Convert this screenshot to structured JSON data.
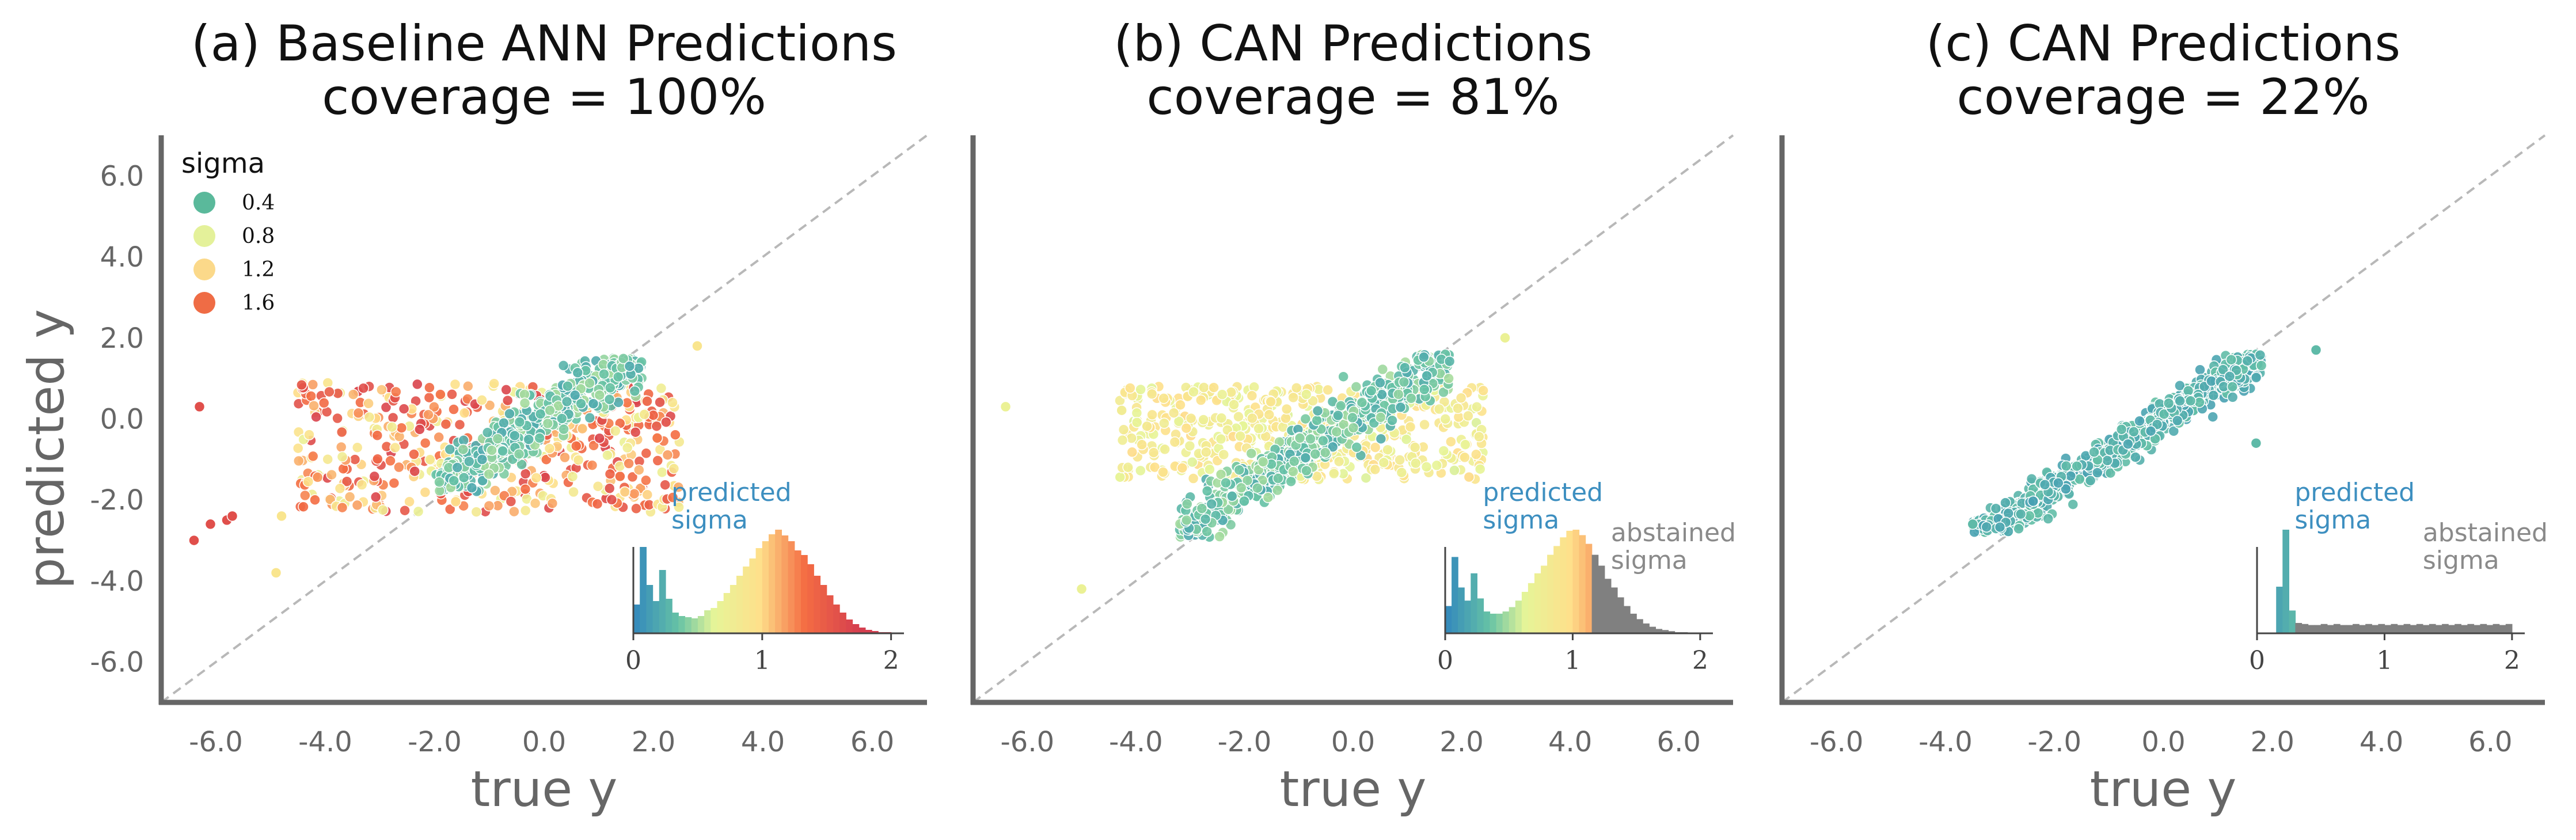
{
  "figure": {
    "ylabel": "predicted y",
    "xlabel": "true y"
  },
  "chart_data": [
    {
      "type": "scatter",
      "title_line1": "(a) Baseline ANN Predictions",
      "title_line2": "coverage = 100%",
      "xlabel": "true y",
      "ylabel": "predicted y",
      "xlim": [
        -7,
        7
      ],
      "ylim": [
        -7,
        7
      ],
      "xticks": [
        -6,
        -4,
        -2,
        0,
        2,
        4,
        6
      ],
      "yticks": [
        -6,
        -4,
        -2,
        0,
        2,
        4,
        6
      ],
      "xtick_labels": [
        "-6.0",
        "-4.0",
        "-2.0",
        "0.0",
        "2.0",
        "4.0",
        "6.0"
      ],
      "ytick_labels": [
        "-6.0",
        "-4.0",
        "-2.0",
        "0.0",
        "2.0",
        "4.0",
        "6.0"
      ],
      "reference_line": "y = x (dashed grey)",
      "coverage_percent": 100,
      "point_groups": [
        {
          "label": "high-sigma spread",
          "x_range": [
            -4.5,
            2.5
          ],
          "y_range": [
            -2.3,
            0.9
          ],
          "sigma_range": [
            0.7,
            1.7
          ]
        },
        {
          "label": "low-sigma diagonal",
          "x_range": [
            -2.0,
            1.8
          ],
          "y_range": [
            -1.8,
            1.5
          ],
          "sigma_range": [
            0.2,
            0.5
          ]
        }
      ],
      "outliers": [
        [
          -6.3,
          0.3
        ],
        [
          -6.4,
          -3.0
        ],
        [
          -6.1,
          -2.6
        ],
        [
          -5.8,
          -2.5
        ],
        [
          -5.7,
          -2.4
        ],
        [
          -4.9,
          -3.8
        ],
        [
          2.8,
          1.8
        ],
        [
          -4.8,
          -2.4
        ]
      ],
      "legend": {
        "title": "sigma",
        "placement": "upper-left",
        "items": [
          {
            "label": "0.4",
            "color": "#5ab99b"
          },
          {
            "label": "0.8",
            "color": "#e4f19a"
          },
          {
            "label": "1.2",
            "color": "#fbd98a"
          },
          {
            "label": "1.6",
            "color": "#ef6c45"
          }
        ]
      },
      "inset": {
        "title": "predicted sigma",
        "xticks": [
          "0",
          "1",
          "2"
        ],
        "histogram": [
          0.25,
          0.75,
          0.42,
          0.28,
          0.55,
          0.3,
          0.18,
          0.15,
          0.14,
          0.13,
          0.15,
          0.2,
          0.22,
          0.28,
          0.35,
          0.42,
          0.5,
          0.58,
          0.65,
          0.74,
          0.8,
          0.86,
          0.9,
          0.85,
          0.8,
          0.72,
          0.68,
          0.6,
          0.5,
          0.42,
          0.33,
          0.25,
          0.18,
          0.12,
          0.08,
          0.05,
          0.03,
          0.02,
          0.01,
          0.01
        ],
        "bin_start": 0.0,
        "bin_width": 0.05,
        "abstained_from": null,
        "abstained_label": ""
      }
    },
    {
      "type": "scatter",
      "title_line1": "(b) CAN Predictions",
      "title_line2": "coverage = 81%",
      "xlabel": "true y",
      "xlim": [
        -7,
        7
      ],
      "ylim": [
        -7,
        7
      ],
      "xticks": [
        -6,
        -4,
        -2,
        0,
        2,
        4,
        6
      ],
      "xtick_labels": [
        "-6.0",
        "-4.0",
        "-2.0",
        "0.0",
        "2.0",
        "4.0",
        "6.0"
      ],
      "reference_line": "y = x (dashed grey)",
      "coverage_percent": 81,
      "point_groups": [
        {
          "label": "moderate-sigma spread",
          "x_range": [
            -4.3,
            2.4
          ],
          "y_range": [
            -1.5,
            0.8
          ],
          "sigma_range": [
            0.6,
            1.0
          ]
        },
        {
          "label": "low-sigma diagonal",
          "x_range": [
            -3.2,
            1.8
          ],
          "y_range": [
            -3.0,
            1.6
          ],
          "sigma_range": [
            0.2,
            0.5
          ]
        }
      ],
      "outliers": [
        [
          -6.4,
          0.3
        ],
        [
          -5.0,
          -4.2
        ],
        [
          2.8,
          2.0
        ]
      ],
      "inset": {
        "title": "predicted sigma",
        "xticks": [
          "0",
          "1",
          "2"
        ],
        "histogram": [
          0.25,
          0.7,
          0.42,
          0.3,
          0.55,
          0.32,
          0.2,
          0.18,
          0.18,
          0.2,
          0.24,
          0.3,
          0.38,
          0.46,
          0.55,
          0.62,
          0.72,
          0.8,
          0.88,
          0.94,
          0.95,
          0.9,
          0.82,
          0.72,
          0.62,
          0.5,
          0.42,
          0.33,
          0.25,
          0.18,
          0.13,
          0.09,
          0.06,
          0.04,
          0.03,
          0.02,
          0.01,
          0.01,
          0.0,
          0.0
        ],
        "bin_start": 0.0,
        "bin_width": 0.05,
        "abstained_from": 1.15,
        "abstained_label": "abstained sigma"
      }
    },
    {
      "type": "scatter",
      "title_line1": "(c) CAN Predictions",
      "title_line2": "coverage = 22%",
      "xlabel": "true y",
      "xlim": [
        -7,
        7
      ],
      "ylim": [
        -7,
        7
      ],
      "xticks": [
        -6,
        -4,
        -2,
        0,
        2,
        4,
        6
      ],
      "xtick_labels": [
        "-6.0",
        "-4.0",
        "-2.0",
        "0.0",
        "2.0",
        "4.0",
        "6.0"
      ],
      "reference_line": "y = x (dashed grey)",
      "coverage_percent": 22,
      "point_groups": [
        {
          "label": "low-sigma diagonal",
          "x_range": [
            -3.5,
            1.8
          ],
          "y_range": [
            -2.8,
            1.6
          ],
          "sigma_range": [
            0.15,
            0.35
          ]
        }
      ],
      "outliers": [
        [
          2.8,
          1.7
        ],
        [
          -3.5,
          -2.6
        ],
        [
          1.7,
          -0.6
        ]
      ],
      "inset": {
        "title": "predicted sigma",
        "xticks": [
          "0",
          "1",
          "2"
        ],
        "histogram": [
          0.0,
          0.0,
          0.0,
          0.45,
          1.0,
          0.22,
          0.1,
          0.09,
          0.08,
          0.08,
          0.09,
          0.08,
          0.09,
          0.08,
          0.08,
          0.09,
          0.08,
          0.09,
          0.08,
          0.09,
          0.08,
          0.09,
          0.08,
          0.09,
          0.08,
          0.09,
          0.08,
          0.09,
          0.08,
          0.09,
          0.08,
          0.09,
          0.08,
          0.09,
          0.08,
          0.09,
          0.08,
          0.09,
          0.08,
          0.09
        ],
        "bin_start": 0.0,
        "bin_width": 0.05,
        "abstained_from": 0.3,
        "abstained_label": "abstained sigma"
      }
    }
  ]
}
